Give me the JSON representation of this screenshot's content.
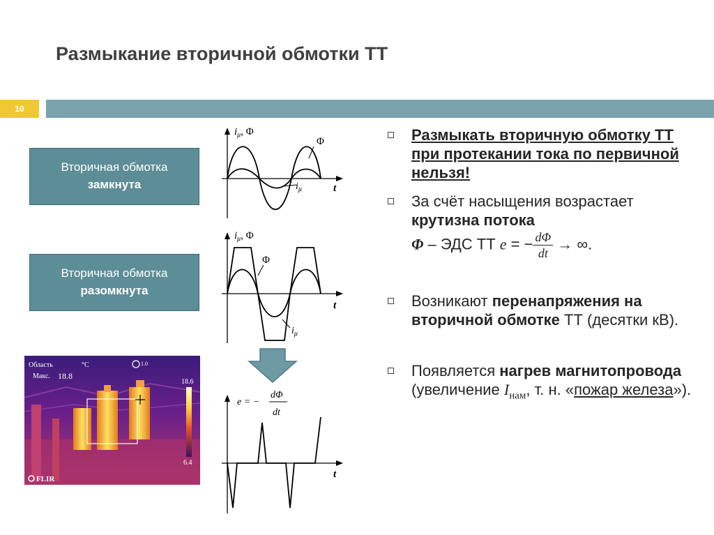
{
  "slide": {
    "title": "Размыкание вторичной обмотки ТТ",
    "number": "10"
  },
  "states": {
    "closed": {
      "line1": "Вторичная обмотка",
      "line2": "замкнута"
    },
    "open": {
      "line1": "Вторичная обмотка",
      "line2": "разомкнута"
    }
  },
  "graphs": {
    "g1": {
      "ylabel_i": "i",
      "ylabel_sub": "μ",
      "ylabel_rest": ", Φ",
      "phi": "Φ",
      "i_label": "i",
      "i_sub": "μ",
      "t": "t"
    },
    "g2": {
      "ylabel_i": "i",
      "ylabel_sub": "μ",
      "ylabel_rest": ", Φ",
      "phi": "Φ",
      "i_label": "i",
      "i_sub": "μ",
      "t": "t"
    },
    "g3": {
      "e_lhs": "e = −",
      "num": "dΦ",
      "den": "dt",
      "t": "t"
    }
  },
  "thermal": {
    "area_label": "Область",
    "unit": "°C",
    "max_label": "Макс.",
    "max_value": "18.8",
    "scale_top": "18.6",
    "scale_bottom": "6.4",
    "spot_value": "1.0",
    "brand": "FLIR"
  },
  "bullets": {
    "b1": "Размыкать вторичную обмотку ТТ при протекании тока по первичной нельзя!",
    "b2": {
      "t1": "За счёт насыщения возрастает ",
      "bold": "крутизна потока",
      "phi": "Φ",
      "t2": " – ЭДС ТТ ",
      "e": "e",
      "eq": " = −",
      "num": "dΦ",
      "den": "dt",
      "tail": " → ∞."
    },
    "b3": {
      "t1": "Возникают ",
      "bold1": "перенапряжения на вторичной обмотке",
      "t2": " ТТ (десятки кВ)."
    },
    "b4": {
      "t1": "Появляется ",
      "bold": "нагрев магнитопровода",
      "t2": " (увеличение ",
      "I": "I",
      "sub": "нам",
      "t3": ", т. н. «",
      "u": "пожар железа",
      "t4": "»)."
    }
  },
  "colors": {
    "accent_bar": "#7aa3ad",
    "number_bar": "#f0c832",
    "state_box": "#5d8d97"
  }
}
